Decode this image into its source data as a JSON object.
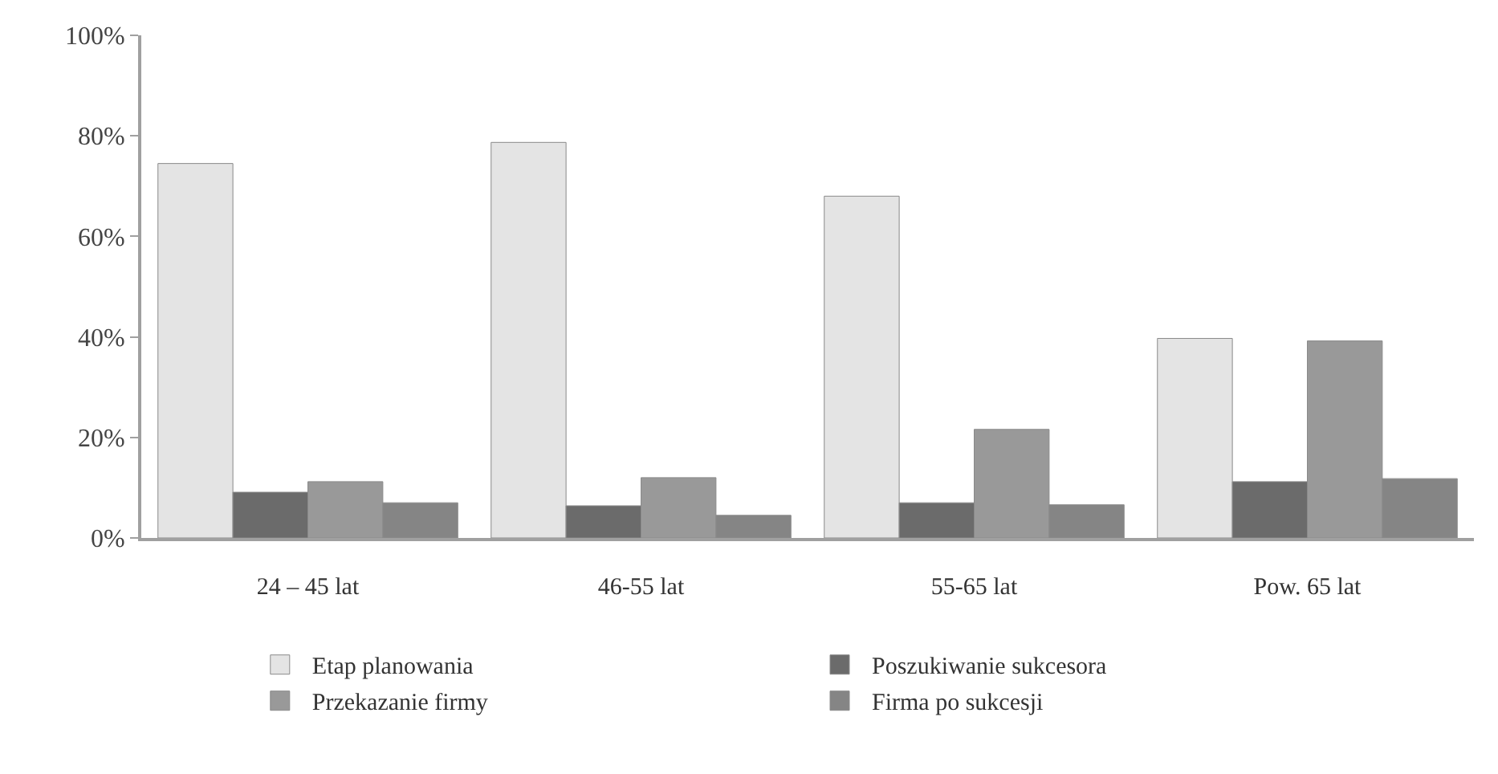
{
  "chart_data": {
    "type": "bar",
    "categories": [
      "24 – 45 lat",
      "46-55 lat",
      "55-65 lat",
      "Pow. 65 lat"
    ],
    "series": [
      {
        "name": "Etap planowania",
        "color": "#e4e4e4",
        "values": [
          74.5,
          78.7,
          68,
          39.7
        ]
      },
      {
        "name": "Poszukiwanie sukcesora",
        "color": "#6b6b6b",
        "values": [
          9.1,
          6.4,
          7,
          11.2
        ]
      },
      {
        "name": "Przekazanie firmy",
        "color": "#999999",
        "values": [
          11.2,
          12,
          21.6,
          39.2
        ]
      },
      {
        "name": "Firma po sukcesji",
        "color": "#858585",
        "values": [
          7,
          4.5,
          6.6,
          11.8
        ]
      }
    ],
    "ylim": [
      0,
      100
    ],
    "yticks": [
      {
        "value": 0,
        "label": "0%"
      },
      {
        "value": 20,
        "label": "20%"
      },
      {
        "value": 40,
        "label": "40%"
      },
      {
        "value": 60,
        "label": "60%"
      },
      {
        "value": 80,
        "label": "80%"
      },
      {
        "value": 100,
        "label": "100%"
      }
    ],
    "legend": "bottom"
  }
}
